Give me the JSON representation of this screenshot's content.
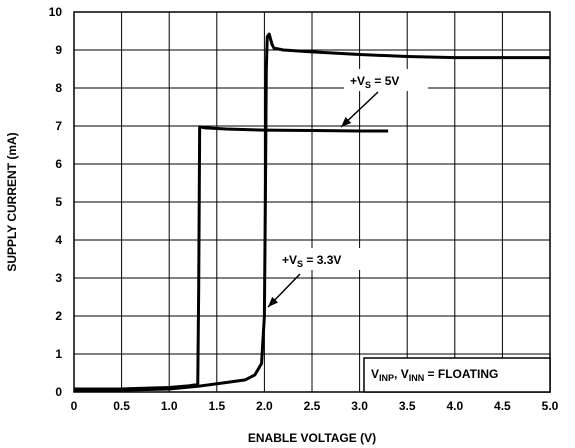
{
  "chart_data": {
    "type": "line",
    "title": "",
    "xlabel": "ENABLE VOLTAGE (V)",
    "ylabel": "SUPPLY CURRENT (mA)",
    "xlim": [
      0,
      5.0
    ],
    "ylim": [
      0,
      10
    ],
    "x_ticks": [
      "0",
      "0.5",
      "1.0",
      "1.5",
      "2.0",
      "2.5",
      "3.0",
      "3.5",
      "4.0",
      "4.5",
      "5.0"
    ],
    "y_ticks": [
      "0",
      "1",
      "2",
      "3",
      "4",
      "5",
      "6",
      "7",
      "8",
      "9",
      "10"
    ],
    "grid": true,
    "series": [
      {
        "name": "+VS = 5V",
        "x": [
          0,
          0.5,
          1.0,
          1.2,
          1.3,
          1.31,
          1.32,
          1.38,
          1.6,
          2.0,
          2.5,
          3.0,
          3.3
        ],
        "y": [
          0.08,
          0.08,
          0.12,
          0.16,
          0.2,
          2.8,
          6.98,
          6.95,
          6.92,
          6.89,
          6.88,
          6.87,
          6.87
        ]
      },
      {
        "name": "+VS = 3.3V",
        "x": [
          0,
          0.5,
          1.0,
          1.3,
          1.6,
          1.8,
          1.9,
          1.97,
          2.0,
          2.01,
          2.02,
          2.03,
          2.05,
          2.08,
          2.1,
          2.2,
          2.5,
          3.0,
          3.5,
          4.0,
          4.5,
          5.0
        ],
        "y": [
          0.05,
          0.05,
          0.08,
          0.15,
          0.25,
          0.32,
          0.45,
          0.75,
          2.0,
          5.0,
          8.5,
          9.35,
          9.42,
          9.15,
          9.05,
          9.0,
          8.95,
          8.88,
          8.83,
          8.8,
          8.8,
          8.8
        ]
      }
    ],
    "annotations": [
      {
        "prefix": "+V",
        "sub": "S",
        "rest": " = 5V",
        "series": "+VS = 5V"
      },
      {
        "prefix": "+V",
        "sub": "S",
        "rest": " = 3.3V",
        "series": "+VS = 3.3V"
      }
    ],
    "legend_box": {
      "v1": "V",
      "s1": "INP",
      "sep": ", V",
      "s2": "INN",
      "rest": " = FLOATING"
    }
  }
}
